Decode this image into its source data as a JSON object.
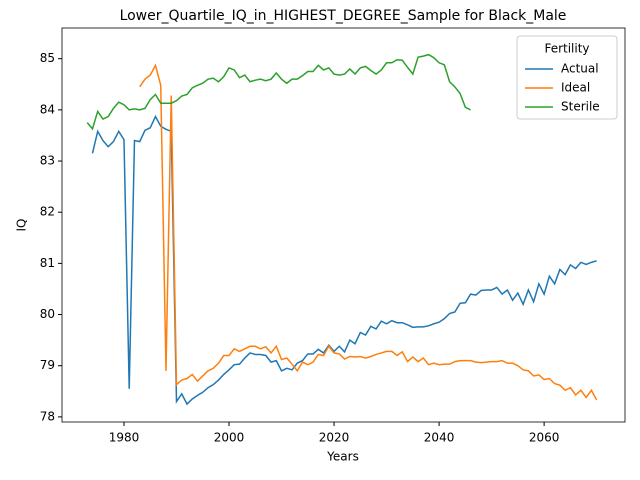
{
  "chart_data": {
    "type": "line",
    "title": "Lower_Quartile_IQ_in_HIGHEST_DEGREE_Sample for Black_Male",
    "x_label": "Years",
    "y_label": "IQ",
    "legend_title": "Fertility",
    "legend": "upper right",
    "xlim": [
      1968.2,
      2075.4
    ],
    "xticks": [
      1980,
      2000,
      2020,
      2040,
      2060
    ],
    "ylim": [
      77.9,
      85.6
    ],
    "yticks": [
      78,
      79,
      80,
      81,
      82,
      83,
      84,
      85
    ],
    "x": [
      1973,
      1974,
      1975,
      1976,
      1977,
      1978,
      1979,
      1980,
      1981,
      1982,
      1983,
      1984,
      1985,
      1986,
      1987,
      1988,
      1989,
      1990,
      1991,
      1992,
      1993,
      1994,
      1995,
      1996,
      1997,
      1998,
      1999,
      2000,
      2001,
      2002,
      2003,
      2004,
      2005,
      2006,
      2007,
      2008,
      2009,
      2010,
      2011,
      2012,
      2013,
      2014,
      2015,
      2016,
      2017,
      2018,
      2019,
      2020,
      2021,
      2022,
      2023,
      2024,
      2025,
      2026,
      2027,
      2028,
      2029,
      2030,
      2031,
      2032,
      2033,
      2034,
      2035,
      2036,
      2037,
      2038,
      2039,
      2040,
      2041,
      2042,
      2043,
      2044,
      2045,
      2046,
      2047,
      2048,
      2049,
      2050,
      2051,
      2052,
      2053,
      2054,
      2055,
      2056,
      2057,
      2058,
      2059,
      2060,
      2061,
      2062,
      2063,
      2064,
      2065,
      2066,
      2067,
      2068,
      2069,
      2070
    ],
    "series": [
      {
        "name": "Actual",
        "color": "#1f77b4",
        "values": [
          null,
          83.15,
          83.58,
          83.4,
          83.28,
          83.38,
          83.58,
          83.42,
          78.55,
          83.4,
          83.38,
          83.6,
          83.65,
          83.87,
          83.68,
          83.62,
          83.58,
          78.3,
          78.45,
          78.25,
          78.35,
          78.42,
          78.48,
          78.57,
          78.63,
          78.72,
          78.83,
          78.92,
          79.02,
          79.03,
          79.15,
          79.25,
          79.22,
          79.22,
          79.2,
          79.07,
          79.1,
          78.9,
          78.95,
          78.92,
          79.05,
          79.1,
          79.23,
          79.23,
          79.32,
          79.25,
          79.4,
          79.28,
          79.38,
          79.27,
          79.5,
          79.43,
          79.65,
          79.6,
          79.77,
          79.72,
          79.87,
          79.82,
          79.88,
          79.84,
          79.84,
          79.8,
          79.75,
          79.76,
          79.76,
          79.78,
          79.82,
          79.85,
          79.92,
          80.02,
          80.05,
          80.22,
          80.23,
          80.4,
          80.38,
          80.47,
          80.48,
          80.48,
          80.53,
          80.4,
          80.48,
          80.28,
          80.42,
          80.2,
          80.48,
          80.25,
          80.6,
          80.4,
          80.75,
          80.6,
          80.88,
          80.78,
          80.97,
          80.9,
          81.02,
          80.98,
          81.02,
          81.05
        ]
      },
      {
        "name": "Ideal",
        "color": "#ff7f0e",
        "values": [
          null,
          null,
          null,
          null,
          null,
          null,
          null,
          null,
          null,
          null,
          84.45,
          84.6,
          84.68,
          84.87,
          84.48,
          78.9,
          84.28,
          78.63,
          78.72,
          78.75,
          78.83,
          78.7,
          78.8,
          78.9,
          78.95,
          79.05,
          79.2,
          79.2,
          79.33,
          79.28,
          79.33,
          79.38,
          79.38,
          79.33,
          79.37,
          79.25,
          79.38,
          79.12,
          79.15,
          79.03,
          78.9,
          79.07,
          79.02,
          79.07,
          79.22,
          79.2,
          79.38,
          79.25,
          79.23,
          79.13,
          79.18,
          79.17,
          79.18,
          79.15,
          79.18,
          79.22,
          79.25,
          79.28,
          79.28,
          79.2,
          79.27,
          79.08,
          79.17,
          79.08,
          79.15,
          79.02,
          79.05,
          79.02,
          79.03,
          79.03,
          79.08,
          79.1,
          79.1,
          79.1,
          79.07,
          79.06,
          79.07,
          79.08,
          79.08,
          79.1,
          79.05,
          79.05,
          79.0,
          78.92,
          78.9,
          78.8,
          78.82,
          78.73,
          78.75,
          78.65,
          78.62,
          78.52,
          78.57,
          78.43,
          78.52,
          78.38,
          78.52,
          78.33
        ]
      },
      {
        "name": "Sterile",
        "color": "#2ca02c",
        "values": [
          83.75,
          83.63,
          83.97,
          83.82,
          83.87,
          84.03,
          84.15,
          84.1,
          84.0,
          84.02,
          84.0,
          84.03,
          84.2,
          84.3,
          84.13,
          84.13,
          84.13,
          84.18,
          84.27,
          84.3,
          84.43,
          84.48,
          84.52,
          84.6,
          84.62,
          84.55,
          84.65,
          84.82,
          84.78,
          84.63,
          84.68,
          84.55,
          84.58,
          84.6,
          84.57,
          84.6,
          84.72,
          84.6,
          84.52,
          84.6,
          84.6,
          84.67,
          84.75,
          84.75,
          84.87,
          84.78,
          84.82,
          84.7,
          84.68,
          84.7,
          84.8,
          84.7,
          84.82,
          84.85,
          84.77,
          84.7,
          84.78,
          84.92,
          84.92,
          84.98,
          84.97,
          84.83,
          84.7,
          85.03,
          85.05,
          85.08,
          85.02,
          84.92,
          84.88,
          84.55,
          84.45,
          84.32,
          84.05,
          84.0,
          null,
          null,
          null,
          null,
          null,
          null,
          null,
          null,
          null,
          null,
          null,
          null,
          null,
          null,
          null,
          null,
          null,
          null,
          null,
          null,
          null,
          null,
          null,
          null
        ]
      }
    ]
  }
}
